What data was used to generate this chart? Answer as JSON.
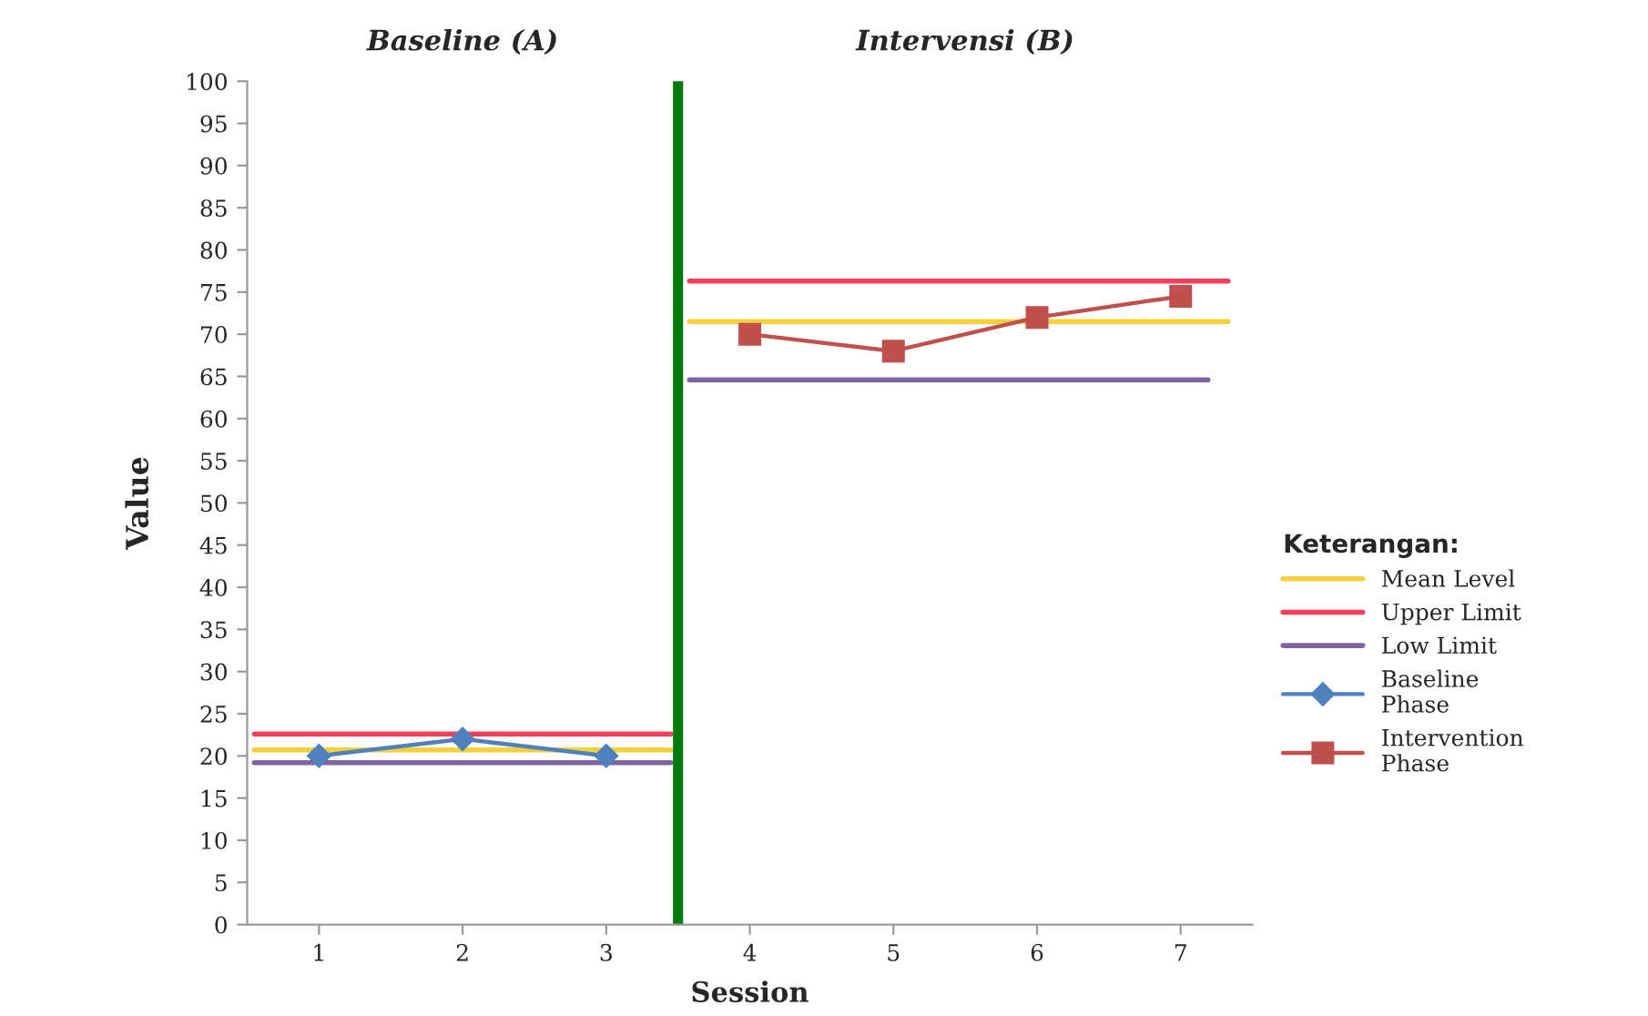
{
  "chart_data": {
    "type": "line",
    "xlabel": "Session",
    "ylabel": "Value",
    "legend_title": "Keterangan:",
    "xlim": [
      0.5,
      7.5
    ],
    "xticks": [
      1,
      2,
      3,
      4,
      5,
      6,
      7
    ],
    "ylim": [
      0,
      100
    ],
    "yticks": [
      0,
      5,
      10,
      15,
      20,
      25,
      30,
      35,
      40,
      45,
      50,
      55,
      60,
      65,
      70,
      75,
      80,
      85,
      90,
      95,
      100
    ],
    "grid": false,
    "legend": "right",
    "series": [
      {
        "name": "Mean Level",
        "color": "#f5cf3c",
        "marker": "none",
        "x": [
          0.55,
          3.45,
          3.5,
          3.58,
          7.33
        ],
        "values": [
          20.7,
          20.7,
          null,
          71.5,
          71.5
        ]
      },
      {
        "name": "Upper Limit",
        "color": "#f0405a",
        "marker": "none",
        "x": [
          0.55,
          3.45,
          3.5,
          3.58,
          7.33
        ],
        "values": [
          22.6,
          22.6,
          null,
          76.3,
          76.3
        ]
      },
      {
        "name": "Low Limit",
        "color": "#8064a2",
        "marker": "none",
        "x": [
          0.55,
          3.45,
          3.5,
          3.58,
          7.19
        ],
        "values": [
          19.2,
          19.2,
          null,
          64.6,
          64.6
        ]
      },
      {
        "name": "Baseline\nPhase",
        "color": "#4f81bd",
        "marker": "diamond",
        "x": [
          1,
          2,
          3
        ],
        "values": [
          20,
          22,
          20
        ]
      },
      {
        "name": "Intervention\nPhase",
        "color": "#c0504d",
        "marker": "square",
        "x": [
          4,
          5,
          6,
          7
        ],
        "values": [
          70,
          68,
          72,
          74.5
        ]
      }
    ],
    "ref_lines": [
      {
        "axis": "x",
        "value": 3.5,
        "label": null,
        "color": "#007a0c"
      }
    ],
    "annotations": [
      "Baseline (A)",
      "Intervensi (B)"
    ]
  }
}
